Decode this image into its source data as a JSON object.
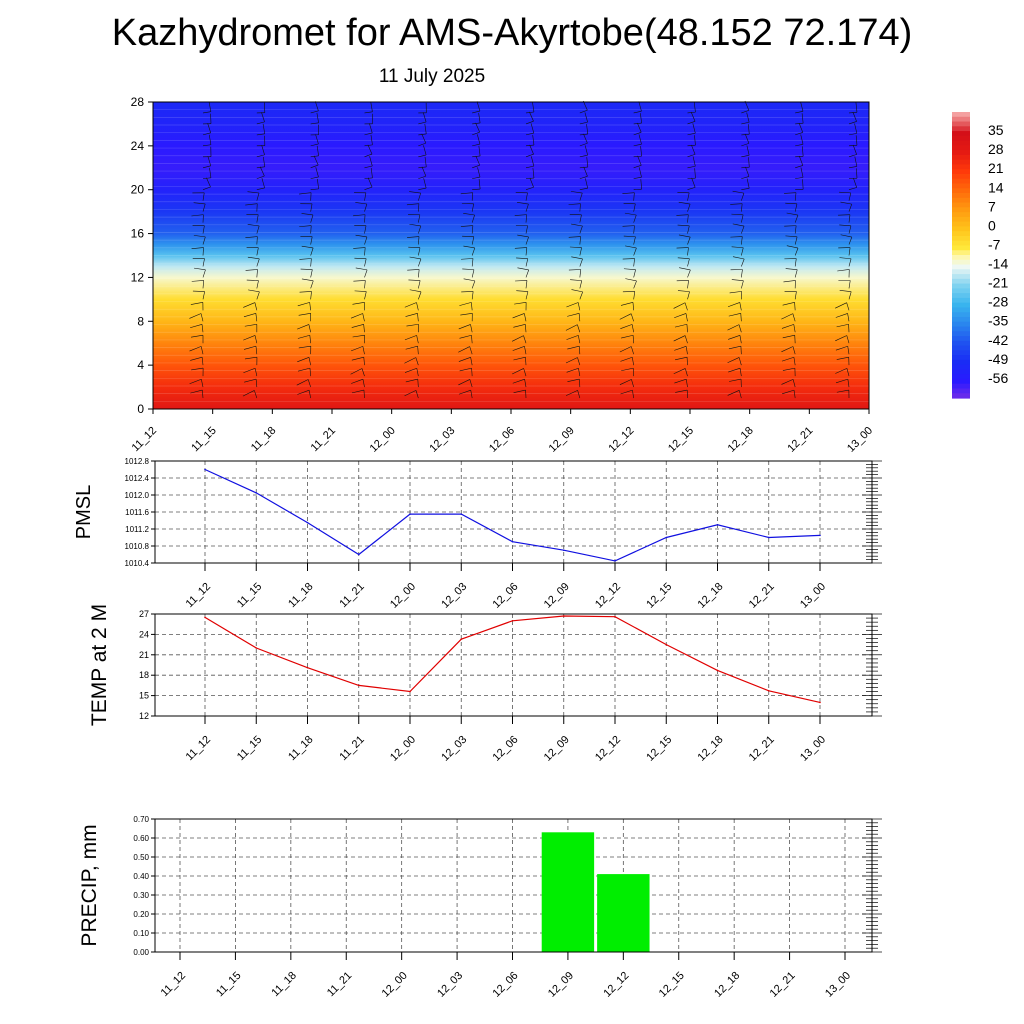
{
  "title": "Kazhydromet for AMS-Akyrtobe(48.152 72.174)",
  "subtitle": "11 July 2025",
  "colors": {
    "pmsl_line": "#1010e0",
    "temp_line": "#e00000",
    "precip_bar": "#00ee00",
    "grid": "#555555"
  },
  "chart_data": [
    {
      "type": "heatmap",
      "name": "vertical-temperature-section",
      "x": [
        "11_12",
        "11_15",
        "11_18",
        "11_21",
        "12_00",
        "12_03",
        "12_06",
        "12_09",
        "12_12",
        "12_15",
        "12_18",
        "12_21",
        "13_00"
      ],
      "y_ticks": [
        0,
        4,
        8,
        12,
        16,
        20,
        24,
        28
      ],
      "ylim": [
        0,
        28
      ],
      "colorbar": {
        "labels": [
          "35",
          "28",
          "21",
          "14",
          "7",
          "0",
          "-7",
          "-14",
          "-21",
          "-28",
          "-35",
          "-42",
          "-49",
          "-56"
        ],
        "range": [
          -63,
          42
        ]
      },
      "temperature_profile": [
        {
          "level": 0,
          "value": 30
        },
        {
          "level": 2,
          "value": 24
        },
        {
          "level": 4,
          "value": 17
        },
        {
          "level": 6,
          "value": 10
        },
        {
          "level": 8,
          "value": 2
        },
        {
          "level": 10,
          "value": -5
        },
        {
          "level": 12,
          "value": -12
        },
        {
          "level": 13,
          "value": -17
        },
        {
          "level": 14,
          "value": -25
        },
        {
          "level": 15,
          "value": -33
        },
        {
          "level": 16,
          "value": -40
        },
        {
          "level": 18,
          "value": -47
        },
        {
          "level": 20,
          "value": -53
        },
        {
          "level": 22,
          "value": -57
        },
        {
          "level": 24,
          "value": -56
        },
        {
          "level": 26,
          "value": -52
        },
        {
          "level": 28,
          "value": -50
        }
      ],
      "wind_barbs": true
    },
    {
      "type": "line",
      "name": "pmsl",
      "ylabel": "PMSL",
      "categories": [
        "11_12",
        "11_15",
        "11_18",
        "11_21",
        "12_00",
        "12_03",
        "12_06",
        "12_09",
        "12_12",
        "12_15",
        "12_18",
        "12_21",
        "13_00"
      ],
      "values": [
        1012.6,
        1012.05,
        1011.35,
        1010.6,
        1011.55,
        1011.55,
        1010.9,
        1010.7,
        1010.45,
        1011.0,
        1011.3,
        1011.0,
        1011.05
      ],
      "ylim": [
        1010.4,
        1012.8
      ],
      "y_ticks": [
        "1010.4",
        "1010.8",
        "1011.2",
        "1011.6",
        "1012.0",
        "1012.4",
        "1012.8"
      ],
      "grid": true
    },
    {
      "type": "line",
      "name": "temp-2m",
      "ylabel": "TEMP at 2 M",
      "categories": [
        "11_12",
        "11_15",
        "11_18",
        "11_21",
        "12_00",
        "12_03",
        "12_06",
        "12_09",
        "12_12",
        "12_15",
        "12_18",
        "12_21",
        "13_00"
      ],
      "values": [
        26.5,
        22.0,
        19.1,
        16.5,
        15.6,
        23.3,
        26.0,
        26.7,
        26.6,
        22.5,
        18.7,
        15.7,
        14.0
      ],
      "ylim": [
        12,
        27
      ],
      "y_ticks": [
        "12",
        "15",
        "18",
        "21",
        "24",
        "27"
      ],
      "grid": true
    },
    {
      "type": "bar",
      "name": "precip",
      "ylabel": "PRECIP, mm",
      "categories": [
        "11_12",
        "11_15",
        "11_18",
        "11_21",
        "12_00",
        "12_03",
        "12_06",
        "12_09",
        "12_12",
        "12_15",
        "12_18",
        "12_21",
        "13_00"
      ],
      "values": [
        0,
        0,
        0,
        0,
        0,
        0,
        0,
        0.63,
        0.41,
        0,
        0,
        0,
        0
      ],
      "ylim": [
        0,
        0.7
      ],
      "y_ticks": [
        "0.00",
        "0.10",
        "0.20",
        "0.30",
        "0.40",
        "0.50",
        "0.60",
        "0.70"
      ],
      "grid": true
    }
  ]
}
